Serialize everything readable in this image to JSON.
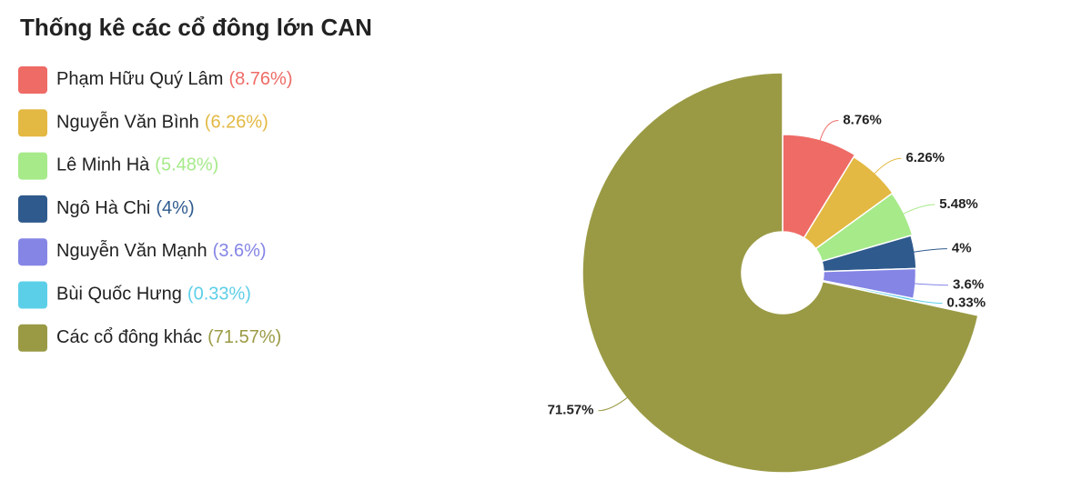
{
  "chart_data": {
    "type": "rose",
    "title": "Thống kê các cổ đông lớn CAN",
    "categories": [
      "Phạm Hữu Quý Lâm",
      "Nguyễn Văn Bình",
      "Lê Minh Hà",
      "Ngô Hà Chi",
      "Nguyễn Văn Mạnh",
      "Bùi Quốc Hưng",
      "Các cổ đông khác"
    ],
    "values": [
      8.76,
      6.26,
      5.48,
      4,
      3.6,
      0.33,
      71.57
    ],
    "value_labels": [
      "8.76%",
      "6.26%",
      "5.48%",
      "4%",
      "3.6%",
      "0.33%",
      "71.57%"
    ],
    "legend_value_labels": [
      "(8.76%)",
      "(6.26%)",
      "(5.48%)",
      "(4%)",
      "(3.6%)",
      "(0.33%)",
      "(71.57%)"
    ],
    "colors": [
      "#ee6b66",
      "#e3b943",
      "#a6ea8a",
      "#2f5a8d",
      "#8585e6",
      "#5ccfe8",
      "#9a9a45"
    ],
    "legend": "top-left"
  }
}
